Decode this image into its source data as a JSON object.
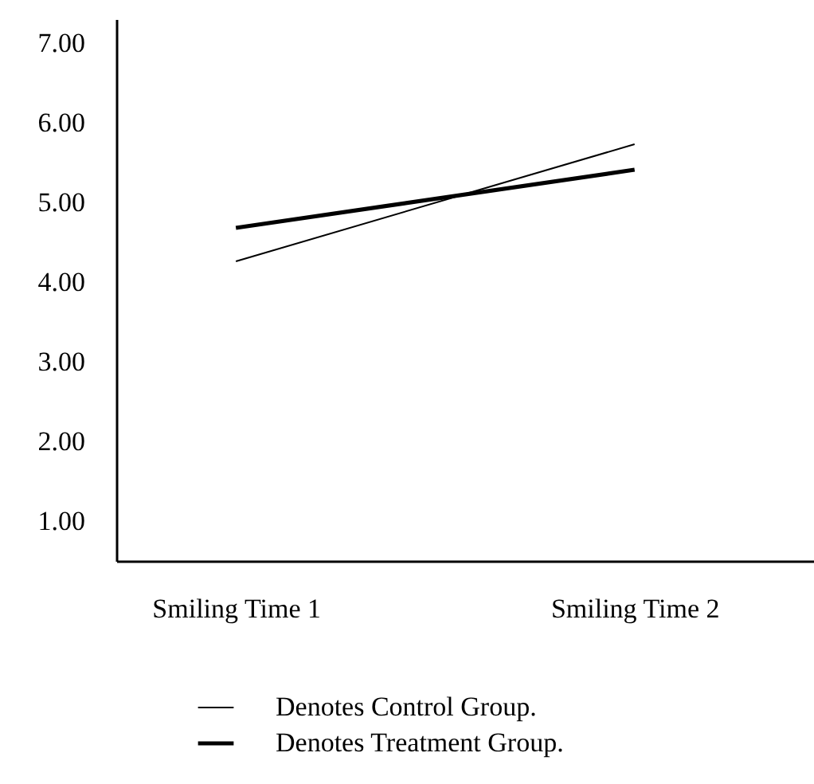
{
  "chart_data": {
    "type": "line",
    "categories": [
      "Smiling Time 1",
      "Smiling Time 2"
    ],
    "series": [
      {
        "name": "Denotes Control Group.",
        "color": "#000000",
        "values": [
          4.26,
          5.73
        ]
      },
      {
        "name": "Denotes Treatment Group.",
        "color": "#000000",
        "values": [
          4.68,
          5.41
        ]
      }
    ],
    "ylim": [
      0.5,
      7.3
    ],
    "yticks": [
      {
        "value": 1,
        "label": "1.00"
      },
      {
        "value": 2,
        "label": "2.00"
      },
      {
        "value": 3,
        "label": "3.00"
      },
      {
        "value": 4,
        "label": "4.00"
      },
      {
        "value": 5,
        "label": "5.00"
      },
      {
        "value": 6,
        "label": "6.00"
      },
      {
        "value": 7,
        "label": "7.00"
      }
    ],
    "grid": false,
    "legend": "bottom left",
    "marker": "none",
    "line_style": "solid"
  }
}
